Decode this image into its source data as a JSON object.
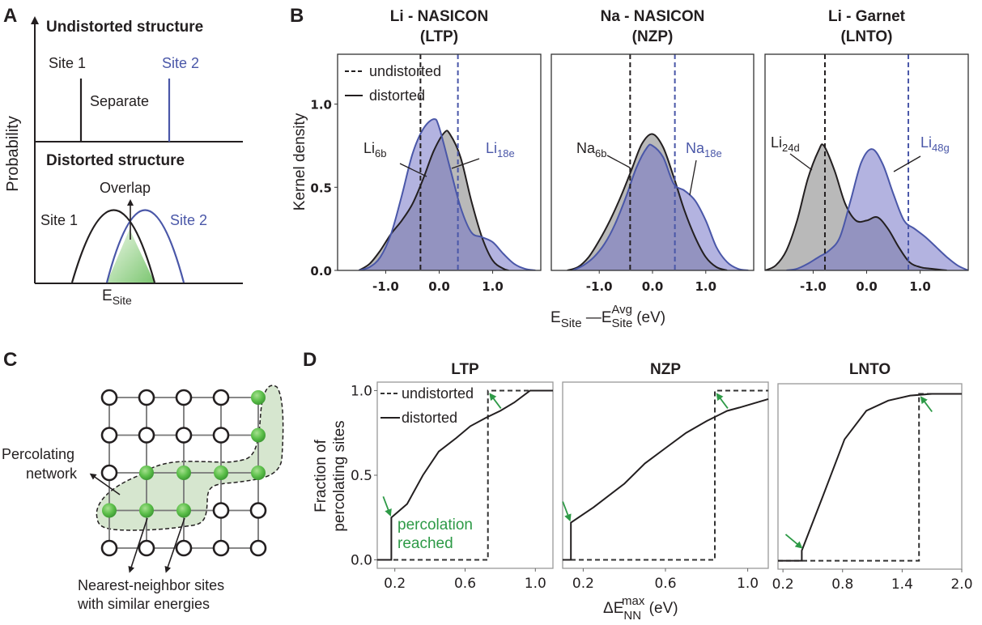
{
  "figure": {
    "panel_letters": {
      "a": "A",
      "b": "B",
      "c": "C",
      "d": "D"
    }
  },
  "panel_a": {
    "y_label": "Probability",
    "x_label_main": "E",
    "x_label_sub": "Site",
    "undistorted_title": "Undistorted structure",
    "distorted_title": "Distorted structure",
    "site1_label": "Site 1",
    "site2_label": "Site 2",
    "separate_label": "Separate",
    "overlap_label": "Overlap",
    "colors": {
      "site1": "#231f20",
      "site2": "#4a57a8",
      "overlap_fill": "#8ccf8a"
    }
  },
  "panel_c": {
    "percolating_label_line1": "Percolating",
    "percolating_label_line2": "network",
    "nn_label_line1": "Nearest-neighbor sites",
    "nn_label_line2": "with similar energies",
    "grid_rows": 5,
    "grid_cols": 5,
    "percolating_sites": [
      [
        0,
        4
      ],
      [
        1,
        4
      ],
      [
        2,
        1
      ],
      [
        2,
        2
      ],
      [
        2,
        3
      ],
      [
        2,
        4
      ],
      [
        3,
        0
      ],
      [
        3,
        1
      ],
      [
        3,
        2
      ]
    ],
    "colors": {
      "site_fill": "#5cbf4a",
      "region_fill": "#d6e6cf"
    }
  },
  "chart_data": [
    {
      "type": "area",
      "panel": "B",
      "title_line1": "Li - NASICON",
      "title_line2": "(LTP)",
      "ylabel": "Kernel density",
      "xlabel_main": "E",
      "xlabel_sub1": "Site",
      "xlabel_dash": " —E",
      "xlabel_sup": "Avg",
      "xlabel_sub2": "Site",
      "xlabel_unit": " (eV)",
      "xlim": [
        -1.9,
        1.9
      ],
      "ylim": [
        0,
        1.3
      ],
      "xticks": [
        -1.0,
        0.0,
        1.0
      ],
      "xtick_labels": [
        "-1.0",
        "0.0",
        "1.0"
      ],
      "yticks": [
        0.0,
        0.5,
        1.0
      ],
      "ytick_labels": [
        "0.0",
        "0.5",
        "1.0"
      ],
      "legend": {
        "undistorted": "undistorted",
        "distorted": "distorted",
        "position": "top-left"
      },
      "series": [
        {
          "name": "Li6b",
          "label_main": "Li",
          "label_sub": "6b",
          "color": "#231f20",
          "fill": "#bdbdbd",
          "undistorted_x": -0.35,
          "x": [
            -1.5,
            -1.3,
            -1.1,
            -0.9,
            -0.7,
            -0.5,
            -0.3,
            -0.1,
            0.1,
            0.2,
            0.4,
            0.6,
            0.8,
            1.0,
            1.2,
            1.3
          ],
          "y": [
            0.0,
            0.04,
            0.12,
            0.22,
            0.3,
            0.4,
            0.55,
            0.72,
            0.83,
            0.82,
            0.68,
            0.42,
            0.2,
            0.06,
            0.01,
            0.0
          ]
        },
        {
          "name": "Li18e",
          "label_main": "Li",
          "label_sub": "18e",
          "color": "#4a57a8",
          "fill": "#b3b3dc",
          "undistorted_x": 0.35,
          "x": [
            -1.5,
            -1.3,
            -1.1,
            -0.9,
            -0.7,
            -0.5,
            -0.3,
            -0.1,
            0.0,
            0.2,
            0.4,
            0.6,
            0.8,
            1.0,
            1.2,
            1.4,
            1.6,
            1.8
          ],
          "y": [
            0.0,
            0.02,
            0.08,
            0.22,
            0.45,
            0.7,
            0.85,
            0.91,
            0.86,
            0.62,
            0.38,
            0.23,
            0.2,
            0.17,
            0.1,
            0.04,
            0.01,
            0.0
          ]
        }
      ]
    },
    {
      "type": "area",
      "panel": "B",
      "title_line1": "Na - NASICON",
      "title_line2": "(NZP)",
      "xlim": [
        -1.9,
        1.9
      ],
      "ylim": [
        0,
        1.3
      ],
      "xticks": [
        -1.0,
        0.0,
        1.0
      ],
      "xtick_labels": [
        "-1.0",
        "0.0",
        "1.0"
      ],
      "series": [
        {
          "name": "Na6b",
          "label_main": "Na",
          "label_sub": "6b",
          "color": "#231f20",
          "fill": "#bdbdbd",
          "undistorted_x": -0.42,
          "x": [
            -1.6,
            -1.4,
            -1.2,
            -1.0,
            -0.8,
            -0.6,
            -0.4,
            -0.2,
            0.0,
            0.2,
            0.4,
            0.6,
            0.8,
            1.0,
            1.2,
            1.4
          ],
          "y": [
            0.0,
            0.02,
            0.08,
            0.18,
            0.3,
            0.44,
            0.6,
            0.76,
            0.82,
            0.74,
            0.56,
            0.36,
            0.2,
            0.08,
            0.02,
            0.0
          ]
        },
        {
          "name": "Na18e",
          "label_main": "Na",
          "label_sub": "18e",
          "color": "#4a57a8",
          "fill": "#b3b3dc",
          "undistorted_x": 0.42,
          "x": [
            -1.5,
            -1.3,
            -1.1,
            -0.9,
            -0.7,
            -0.5,
            -0.3,
            -0.1,
            0.0,
            0.2,
            0.4,
            0.6,
            0.8,
            1.0,
            1.2,
            1.4,
            1.6,
            1.8
          ],
          "y": [
            0.0,
            0.03,
            0.08,
            0.16,
            0.28,
            0.44,
            0.62,
            0.74,
            0.75,
            0.68,
            0.52,
            0.48,
            0.42,
            0.3,
            0.14,
            0.05,
            0.01,
            0.0
          ]
        }
      ]
    },
    {
      "type": "area",
      "panel": "B",
      "title_line1": "Li - Garnet",
      "title_line2": "(LNTO)",
      "xlim": [
        -1.9,
        1.9
      ],
      "ylim": [
        0,
        1.3
      ],
      "xticks": [
        -1.0,
        0.0,
        1.0
      ],
      "xtick_labels": [
        "-1.0",
        "0.0",
        "1.0"
      ],
      "series": [
        {
          "name": "Li24d",
          "label_main": "Li",
          "label_sub": "24d",
          "color": "#231f20",
          "fill": "#bdbdbd",
          "undistorted_x": -0.78,
          "x": [
            -1.9,
            -1.7,
            -1.5,
            -1.3,
            -1.1,
            -0.9,
            -0.8,
            -0.6,
            -0.4,
            -0.2,
            0.0,
            0.2,
            0.4,
            0.6,
            0.8,
            1.0,
            1.2,
            1.5
          ],
          "y": [
            0.0,
            0.03,
            0.12,
            0.3,
            0.55,
            0.72,
            0.75,
            0.6,
            0.4,
            0.3,
            0.3,
            0.32,
            0.25,
            0.14,
            0.05,
            0.02,
            0.01,
            0.0
          ]
        },
        {
          "name": "Li48g",
          "label_main": "Li",
          "label_sub": "48g",
          "color": "#4a57a8",
          "fill": "#b3b3dc",
          "undistorted_x": 0.78,
          "x": [
            -1.5,
            -1.3,
            -1.1,
            -0.9,
            -0.7,
            -0.5,
            -0.3,
            -0.1,
            0.1,
            0.3,
            0.5,
            0.7,
            0.9,
            1.1,
            1.3,
            1.5,
            1.7,
            1.9
          ],
          "y": [
            0.0,
            0.01,
            0.04,
            0.08,
            0.12,
            0.2,
            0.42,
            0.65,
            0.73,
            0.64,
            0.46,
            0.3,
            0.25,
            0.2,
            0.14,
            0.08,
            0.03,
            0.0
          ]
        }
      ]
    },
    {
      "type": "line",
      "panel": "D",
      "title": "LTP",
      "ylabel_line1": "Fraction of",
      "ylabel_line2": "percolating sites",
      "xlabel_main": "ΔE",
      "xlabel_sup": "max",
      "xlabel_sub": "NN",
      "xlabel_unit": " (eV)",
      "xlim": [
        0.1,
        1.1
      ],
      "ylim": [
        -0.05,
        1.05
      ],
      "xticks": [
        0.2,
        0.6,
        1.0
      ],
      "xtick_labels": [
        "0.2",
        "0.6",
        "1.0"
      ],
      "yticks": [
        0.0,
        0.5,
        1.0
      ],
      "ytick_labels": [
        "0.0",
        "0.5",
        "1.0"
      ],
      "legend": {
        "undistorted": "undistorted",
        "distorted": "distorted",
        "position": "top-left"
      },
      "annotation": {
        "line1": "percolation",
        "line2": "reached",
        "color": "#2e9a47"
      },
      "series": [
        {
          "name": "undistorted",
          "style": "dashed",
          "x": [
            0.1,
            0.73,
            0.73,
            1.1
          ],
          "y": [
            0.0,
            0.0,
            1.0,
            1.0
          ]
        },
        {
          "name": "distorted",
          "style": "solid",
          "x": [
            0.1,
            0.18,
            0.18,
            0.27,
            0.36,
            0.45,
            0.55,
            0.63,
            0.72,
            0.8,
            0.88,
            0.97,
            1.1
          ],
          "y": [
            0.0,
            0.0,
            0.25,
            0.33,
            0.5,
            0.64,
            0.72,
            0.79,
            0.84,
            0.88,
            0.93,
            1.0,
            1.0
          ]
        }
      ],
      "percolation_points": [
        [
          0.18,
          0.25
        ],
        [
          0.73,
          1.0
        ]
      ]
    },
    {
      "type": "line",
      "panel": "D",
      "title": "NZP",
      "xlim": [
        0.1,
        1.1
      ],
      "ylim": [
        -0.05,
        1.05
      ],
      "xticks": [
        0.2,
        0.6,
        1.0
      ],
      "xtick_labels": [
        "0.2",
        "0.6",
        "1.0"
      ],
      "series": [
        {
          "name": "undistorted",
          "style": "dashed",
          "x": [
            0.1,
            0.84,
            0.84,
            1.1
          ],
          "y": [
            0.0,
            0.0,
            1.0,
            1.0
          ]
        },
        {
          "name": "distorted",
          "style": "solid",
          "x": [
            0.1,
            0.14,
            0.14,
            0.25,
            0.4,
            0.5,
            0.6,
            0.7,
            0.8,
            0.9,
            0.96,
            1.1
          ],
          "y": [
            0.0,
            0.0,
            0.22,
            0.31,
            0.45,
            0.57,
            0.66,
            0.75,
            0.82,
            0.88,
            0.9,
            0.95
          ]
        }
      ],
      "percolation_points": [
        [
          0.14,
          0.22
        ],
        [
          0.84,
          1.0
        ]
      ]
    },
    {
      "type": "line",
      "panel": "D",
      "title": "LNTO",
      "xlim": [
        0.15,
        2.0
      ],
      "ylim": [
        -0.05,
        1.05
      ],
      "xticks": [
        0.2,
        0.8,
        1.4,
        2.0
      ],
      "xtick_labels": [
        "0.2",
        "0.8",
        "1.4",
        "2.0"
      ],
      "series": [
        {
          "name": "undistorted",
          "style": "dashed",
          "x": [
            0.15,
            1.57,
            1.57,
            2.0
          ],
          "y": [
            0.0,
            0.0,
            0.99,
            0.99
          ]
        },
        {
          "name": "distorted",
          "style": "solid",
          "x": [
            0.15,
            0.39,
            0.39,
            0.6,
            0.82,
            1.04,
            1.26,
            1.48,
            1.7,
            2.0
          ],
          "y": [
            0.0,
            0.0,
            0.06,
            0.38,
            0.72,
            0.89,
            0.95,
            0.98,
            0.99,
            0.99
          ]
        }
      ],
      "percolation_points": [
        [
          0.39,
          0.06
        ],
        [
          1.57,
          0.99
        ]
      ]
    }
  ]
}
